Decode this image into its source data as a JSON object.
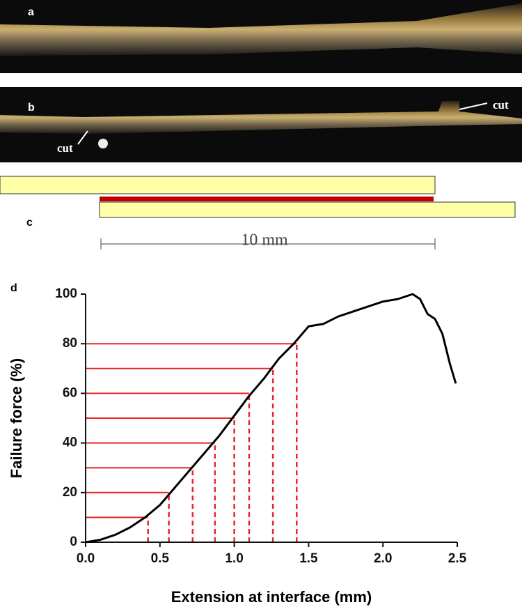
{
  "panel_labels": [
    "a",
    "b",
    "c",
    "d"
  ],
  "annotations": {
    "cut_left": "cut",
    "cut_right": "cut",
    "scale_bar": "10 mm"
  },
  "chart_data": {
    "type": "line",
    "xlabel": "Extension at interface (mm)",
    "ylabel": "Failure force (%)",
    "x": [
      0,
      0.1,
      0.2,
      0.3,
      0.4,
      0.5,
      0.6,
      0.7,
      0.8,
      0.9,
      1.0,
      1.1,
      1.2,
      1.3,
      1.4,
      1.5,
      1.6,
      1.7,
      1.8,
      1.9,
      2.0,
      2.1,
      2.2,
      2.25,
      2.3,
      2.35,
      2.4,
      2.45,
      2.49
    ],
    "series": [
      {
        "color": "#000000",
        "values": [
          0,
          1,
          3,
          6,
          10,
          15,
          22,
          29,
          36,
          43,
          51,
          59,
          66,
          74,
          80,
          87,
          88,
          91,
          93,
          95,
          97,
          98,
          100,
          98,
          92,
          90,
          84,
          72,
          64
        ]
      }
    ],
    "guides": {
      "color": "#e8262a",
      "x": [
        0.42,
        0.56,
        0.72,
        0.87,
        1.0,
        1.1,
        1.26,
        1.42
      ],
      "y": [
        10,
        20,
        30,
        40,
        50,
        60,
        70,
        80
      ]
    },
    "xlim": [
      0,
      2.5
    ],
    "ylim": [
      0,
      100
    ],
    "xticks": [
      {
        "value": 0,
        "label": "0.0"
      },
      0.5,
      {
        "value": 1,
        "label": "1.0"
      },
      1.5,
      {
        "value": 2,
        "label": "2.0"
      },
      2.5
    ],
    "yticks": [
      0,
      20,
      40,
      60,
      80,
      100
    ]
  }
}
